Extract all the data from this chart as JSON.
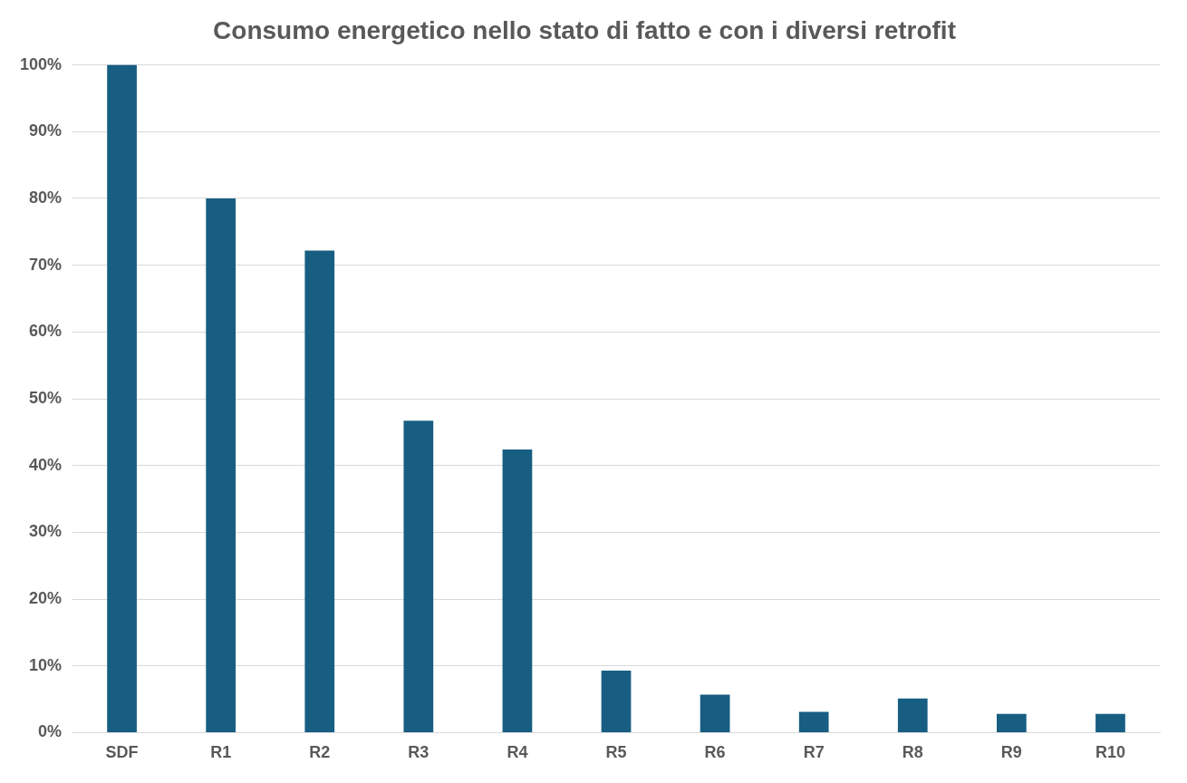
{
  "chart_data": {
    "type": "bar",
    "title": "Consumo energetico nello stato di fatto e con i diversi retrofit",
    "categories": [
      "SDF",
      "R1",
      "R2",
      "R3",
      "R4",
      "R5",
      "R6",
      "R7",
      "R8",
      "R9",
      "R10"
    ],
    "values": [
      100,
      80,
      72.2,
      46.7,
      42.4,
      9.3,
      5.7,
      3.1,
      5.1,
      2.8,
      2.8
    ],
    "color": "#175e82",
    "ylim": [
      0,
      100
    ],
    "yticks": [
      {
        "value": 0,
        "label": "0%"
      },
      {
        "value": 10,
        "label": "10%"
      },
      {
        "value": 20,
        "label": "20%"
      },
      {
        "value": 30,
        "label": "30%"
      },
      {
        "value": 40,
        "label": "40%"
      },
      {
        "value": 50,
        "label": "50%"
      },
      {
        "value": 60,
        "label": "60%"
      },
      {
        "value": 70,
        "label": "70%"
      },
      {
        "value": 80,
        "label": "80%"
      },
      {
        "value": 90,
        "label": "90%"
      },
      {
        "value": 100,
        "label": "100%"
      }
    ],
    "grid": "y",
    "legend": false
  }
}
